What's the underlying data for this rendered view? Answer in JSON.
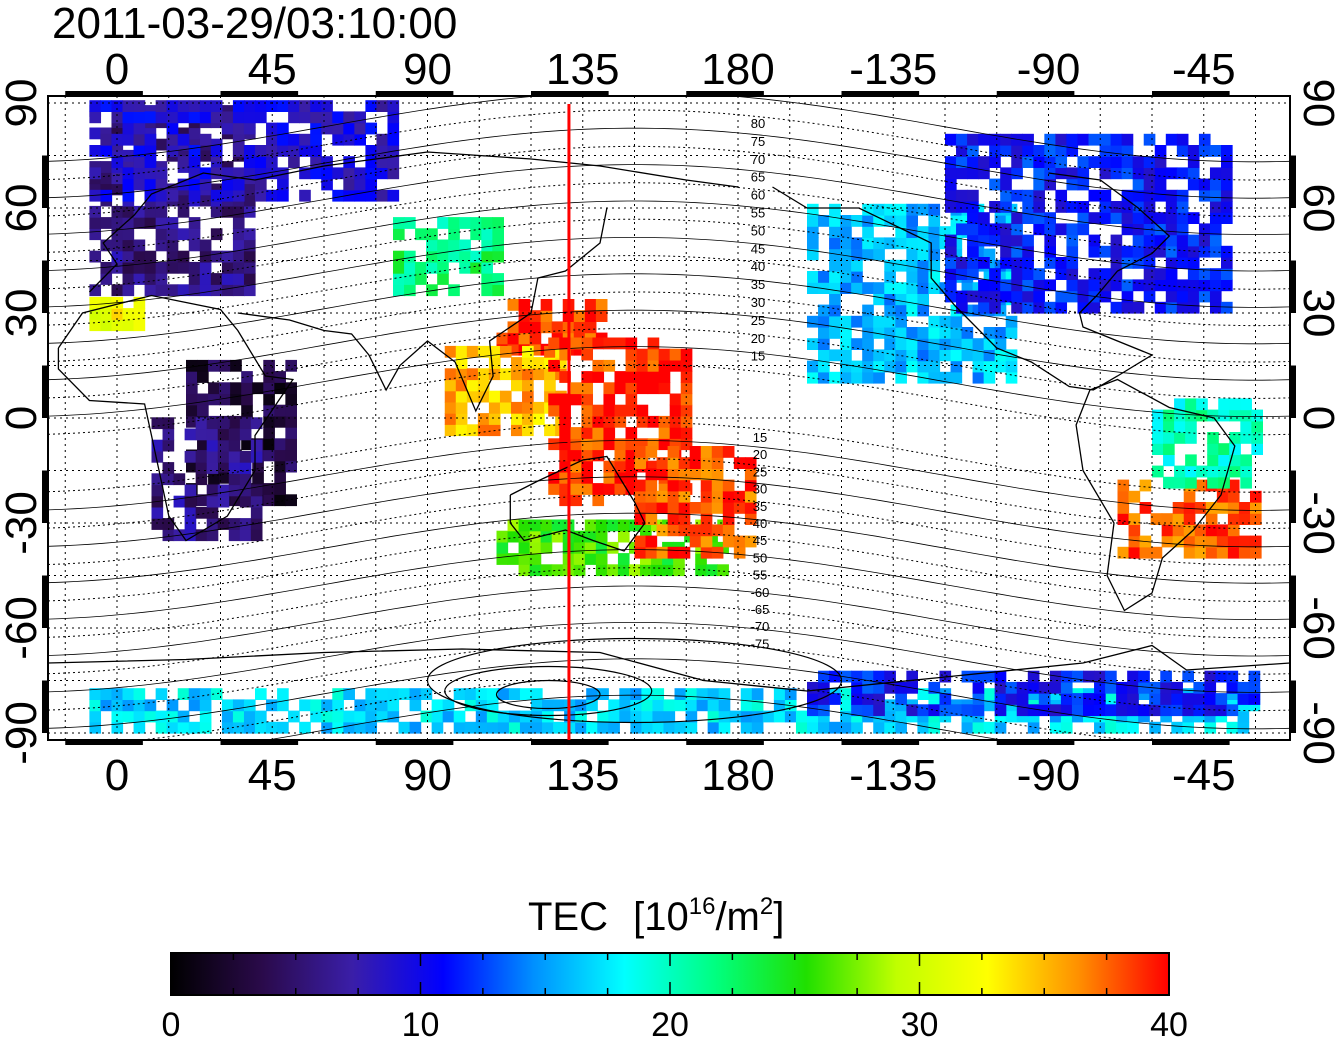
{
  "timestamp": "2011-03-29/03:10:00",
  "map": {
    "lon_ticks": [
      "0",
      "45",
      "90",
      "135",
      "180",
      "-135",
      "-90",
      "-45"
    ],
    "lat_ticks": [
      "90",
      "60",
      "30",
      "0",
      "-30",
      "-60",
      "-90"
    ],
    "lon_range": [
      -20,
      340
    ],
    "lat_range": [
      -92,
      92
    ],
    "marker_line": {
      "lon": 131,
      "color": "#ff0000"
    },
    "contour_labels_north": [
      "80",
      "75",
      "70",
      "65",
      "60",
      "55",
      "50",
      "45",
      "40",
      "35",
      "30",
      "25",
      "20",
      "15"
    ],
    "contour_labels_south": [
      "15",
      "20",
      "25",
      "30",
      "35",
      "40",
      "45",
      "50",
      "55",
      "-60",
      "-65",
      "-70",
      "-75"
    ]
  },
  "colorbar": {
    "title": "TEC",
    "unit": "[10",
    "unit_exp": "16",
    "unit_rest": "/m",
    "unit_exp2": "2",
    "unit_close": "]",
    "ticks": [
      "0",
      "10",
      "20",
      "30",
      "40"
    ],
    "range": [
      0,
      40
    ],
    "stops": [
      "#000000",
      "#2a0a4a",
      "#3a1ea8",
      "#0000ff",
      "#0090ff",
      "#00ffff",
      "#00ff80",
      "#20e000",
      "#c0ff00",
      "#ffff00",
      "#ff9000",
      "#ff0000"
    ]
  },
  "chart_data": {
    "type": "heatmap",
    "title": "2011-03-29/03:10:00",
    "colorbar_label": "TEC [10^16/m^2]",
    "value_range": [
      0,
      40
    ],
    "x_range_lon": [
      -20,
      340
    ],
    "y_range_lat": [
      -92,
      92
    ],
    "regions": [
      {
        "lon": [
          -8,
          40
        ],
        "lat": [
          35,
          88
        ],
        "value": 6
      },
      {
        "lon": [
          -8,
          80
        ],
        "lat": [
          62,
          88
        ],
        "value": 9
      },
      {
        "lon": [
          20,
          50
        ],
        "lat": [
          -25,
          15
        ],
        "value": 3
      },
      {
        "lon": [
          10,
          40
        ],
        "lat": [
          -35,
          0
        ],
        "value": 6
      },
      {
        "lon": [
          -8,
          5
        ],
        "lat": [
          25,
          32
        ],
        "value": 32
      },
      {
        "lon": [
          80,
          110
        ],
        "lat": [
          35,
          55
        ],
        "value": 22
      },
      {
        "lon": [
          110,
          140
        ],
        "lat": [
          18,
          33
        ],
        "value": 39
      },
      {
        "lon": [
          95,
          130
        ],
        "lat": [
          -5,
          20
        ],
        "value": 35
      },
      {
        "lon": [
          125,
          165
        ],
        "lat": [
          -25,
          20
        ],
        "value": 39
      },
      {
        "lon": [
          110,
          175
        ],
        "lat": [
          -45,
          -30
        ],
        "value": 26
      },
      {
        "lon": [
          150,
          185
        ],
        "lat": [
          -40,
          -10
        ],
        "value": 38
      },
      {
        "lon": [
          200,
          260
        ],
        "lat": [
          10,
          60
        ],
        "value": 16
      },
      {
        "lon": [
          240,
          320
        ],
        "lat": [
          30,
          80
        ],
        "value": 11
      },
      {
        "lon": [
          290,
          330
        ],
        "lat": [
          -40,
          -20
        ],
        "value": 38
      },
      {
        "lon": [
          300,
          330
        ],
        "lat": [
          -20,
          5
        ],
        "value": 20
      },
      {
        "lon": [
          -8,
          330
        ],
        "lat": [
          -90,
          -80
        ],
        "value": 17
      },
      {
        "lon": [
          200,
          330
        ],
        "lat": [
          -85,
          -75
        ],
        "value": 11
      }
    ]
  }
}
